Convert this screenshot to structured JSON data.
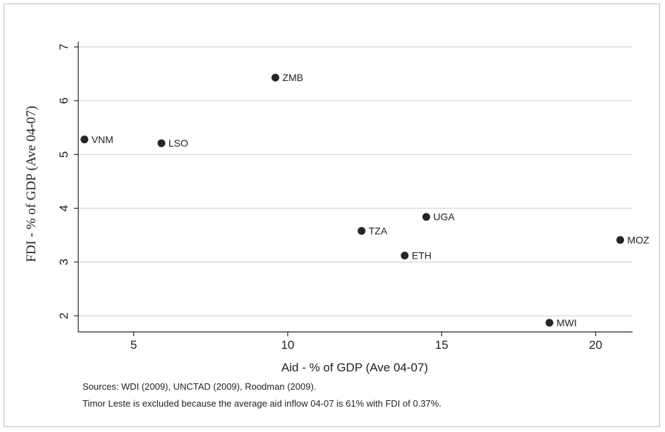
{
  "chart_data": {
    "type": "scatter",
    "xlabel": "Aid - % of GDP (Ave 04-07)",
    "ylabel": "FDI  - % of GDP (Ave 04-07)",
    "xlim": [
      3.2,
      21.2
    ],
    "ylim": [
      1.7,
      7.1
    ],
    "xticks": [
      5,
      10,
      15,
      20
    ],
    "yticks": [
      2,
      3,
      4,
      5,
      6,
      7
    ],
    "grid": "horizontal",
    "points": [
      {
        "label": "VNM",
        "x": 3.4,
        "y": 5.28
      },
      {
        "label": "LSO",
        "x": 5.9,
        "y": 5.21
      },
      {
        "label": "ZMB",
        "x": 9.6,
        "y": 6.43
      },
      {
        "label": "TZA",
        "x": 12.4,
        "y": 3.58
      },
      {
        "label": "UGA",
        "x": 14.5,
        "y": 3.84
      },
      {
        "label": "ETH",
        "x": 13.8,
        "y": 3.12
      },
      {
        "label": "MWI",
        "x": 18.5,
        "y": 1.87
      },
      {
        "label": "MOZ",
        "x": 20.8,
        "y": 3.41
      }
    ]
  },
  "notes": {
    "sources": "Sources: WDI (2009), UNCTAD (2009), Roodman (2009).",
    "exclusion": "Timor Leste is excluded because the average aid inflow 04-07 is 61% with FDI of 0.37%."
  }
}
